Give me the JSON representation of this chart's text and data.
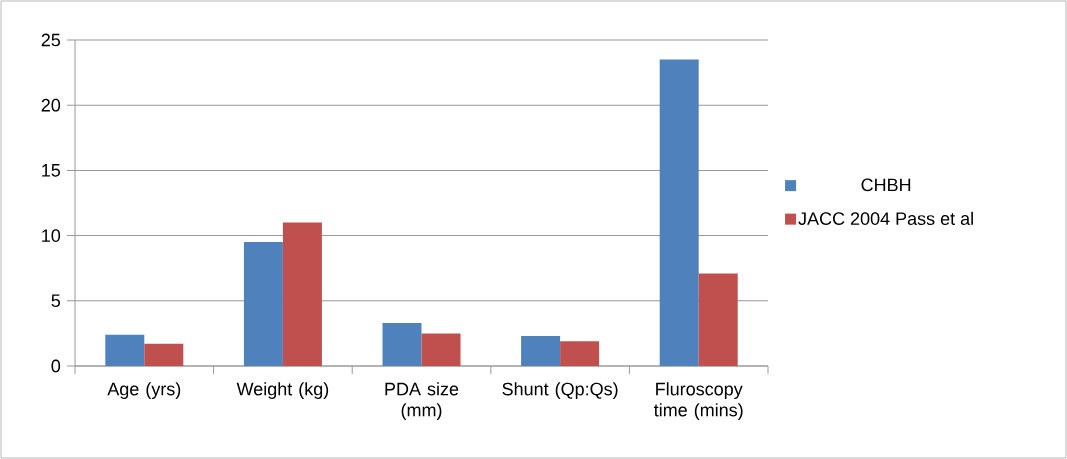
{
  "chart_data": {
    "type": "bar",
    "categories": [
      "Age (yrs)",
      "Weight (kg)",
      "PDA size (mm)",
      "Shunt (Qp:Qs)",
      "Fluroscopy time (mins)"
    ],
    "series": [
      {
        "name": "CHBH",
        "color": "#4f81bd",
        "values": [
          2.4,
          9.5,
          3.3,
          2.3,
          23.5
        ]
      },
      {
        "name": "JACC 2004 Pass et al",
        "color": "#c0504d",
        "values": [
          1.7,
          11,
          2.5,
          1.9,
          7.1
        ]
      }
    ],
    "ylim": [
      0,
      25
    ],
    "yticks": [
      0,
      5,
      10,
      15,
      20,
      25
    ],
    "grid": "y",
    "legend": "right"
  }
}
